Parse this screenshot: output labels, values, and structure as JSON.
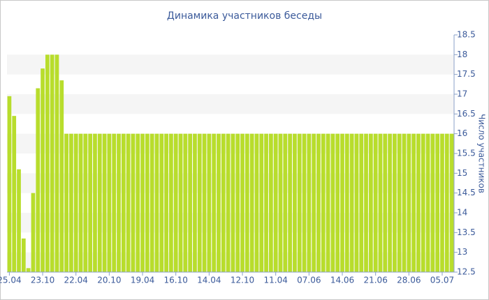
{
  "chart_data": {
    "type": "bar",
    "title": "Динамика участников беседы",
    "y_label": "Число участников",
    "categories": [
      "25.04",
      null,
      null,
      null,
      null,
      null,
      null,
      "23.10",
      null,
      null,
      null,
      null,
      null,
      null,
      "22.04",
      null,
      null,
      null,
      null,
      null,
      null,
      "20.10",
      null,
      null,
      null,
      null,
      null,
      null,
      "19.04",
      null,
      null,
      null,
      null,
      null,
      null,
      "16.10",
      null,
      null,
      null,
      null,
      null,
      null,
      "14.04",
      null,
      null,
      null,
      null,
      null,
      null,
      "12.10",
      null,
      null,
      null,
      null,
      null,
      null,
      "11.04",
      null,
      null,
      null,
      null,
      null,
      null,
      "07.06",
      null,
      null,
      null,
      null,
      null,
      null,
      "14.06",
      null,
      null,
      null,
      null,
      null,
      null,
      "21.06",
      null,
      null,
      null,
      null,
      null,
      null,
      "28.06",
      null,
      null,
      null,
      null,
      null,
      null,
      "05.07",
      null,
      null
    ],
    "values": [
      16.95,
      16.45,
      15.1,
      13.35,
      12.6,
      14.5,
      17.15,
      17.65,
      18,
      18,
      18,
      17.35,
      16,
      16,
      16,
      16,
      16,
      16,
      16,
      16,
      16,
      16,
      16,
      16,
      16,
      16,
      16,
      16,
      16,
      16,
      16,
      16,
      16,
      16,
      16,
      16,
      16,
      16,
      16,
      16,
      16,
      16,
      16,
      16,
      16,
      16,
      16,
      16,
      16,
      16,
      16,
      16,
      16,
      16,
      16,
      16,
      16,
      16,
      16,
      16,
      16,
      16,
      16,
      16,
      16,
      16,
      16,
      16,
      16,
      16,
      16,
      16,
      16,
      16,
      16,
      16,
      16,
      16,
      16,
      16,
      16,
      16,
      16,
      16,
      16,
      16,
      16,
      16,
      16,
      16,
      16,
      16,
      16,
      16
    ],
    "color": "#b8dd2c",
    "ylim": [
      12.5,
      18.5
    ],
    "yticks": [
      12.5,
      13,
      13.5,
      14,
      14.5,
      15,
      15.5,
      16,
      16.5,
      17,
      17.5,
      18,
      18.5
    ],
    "grid": true
  }
}
